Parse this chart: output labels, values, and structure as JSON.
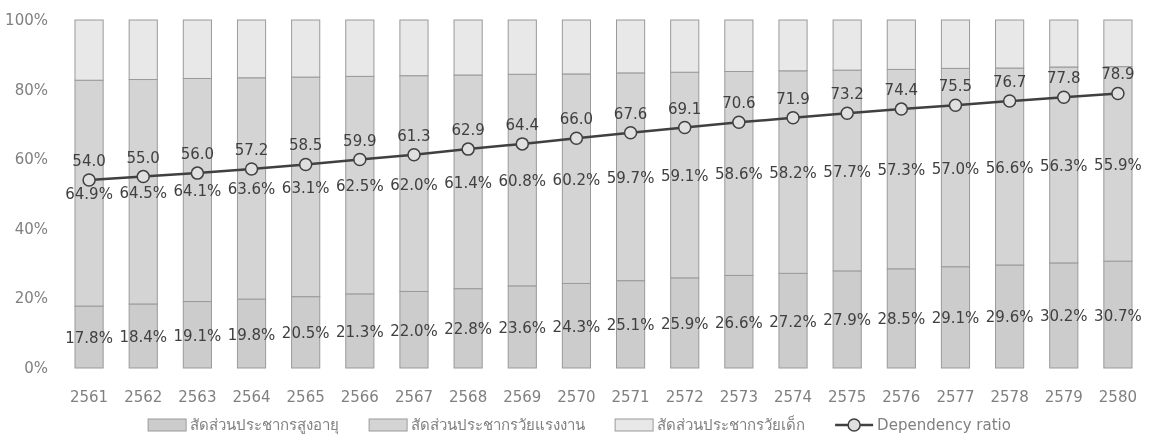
{
  "chart_data": {
    "type": "bar",
    "stacked": true,
    "categories": [
      "2561",
      "2562",
      "2563",
      "2564",
      "2565",
      "2566",
      "2567",
      "2568",
      "2569",
      "2570",
      "2571",
      "2572",
      "2573",
      "2574",
      "2575",
      "2576",
      "2577",
      "2578",
      "2579",
      "2580"
    ],
    "series": [
      {
        "name": "สัดส่วนประชากรสูงอายุ",
        "color": "#cccccc",
        "values": [
          17.8,
          18.4,
          19.1,
          19.8,
          20.5,
          21.3,
          22.0,
          22.8,
          23.6,
          24.3,
          25.1,
          25.9,
          26.6,
          27.2,
          27.9,
          28.5,
          29.1,
          29.6,
          30.2,
          30.7
        ],
        "value_labels": [
          "17.8%",
          "18.4%",
          "19.1%",
          "19.8%",
          "20.5%",
          "21.3%",
          "22.0%",
          "22.8%",
          "23.6%",
          "24.3%",
          "25.1%",
          "25.9%",
          "26.6%",
          "27.2%",
          "27.9%",
          "28.5%",
          "29.1%",
          "29.6%",
          "30.2%",
          "30.7%"
        ]
      },
      {
        "name": "สัดส่วนประชากรวัยแรงงาน",
        "color": "#d4d4d4",
        "values": [
          64.9,
          64.5,
          64.1,
          63.6,
          63.1,
          62.5,
          62.0,
          61.4,
          60.8,
          60.2,
          59.7,
          59.1,
          58.6,
          58.2,
          57.7,
          57.3,
          57.0,
          56.6,
          56.3,
          55.9
        ],
        "value_labels": [
          "64.9%",
          "64.5%",
          "64.1%",
          "63.6%",
          "63.1%",
          "62.5%",
          "62.0%",
          "61.4%",
          "60.8%",
          "60.2%",
          "59.7%",
          "59.1%",
          "58.6%",
          "58.2%",
          "57.7%",
          "57.3%",
          "57.0%",
          "56.6%",
          "56.3%",
          "55.9%"
        ]
      },
      {
        "name": "สัดส่วนประชากรวัยเด็ก",
        "color": "#e8e8e8",
        "values": [
          17.3,
          17.1,
          16.8,
          16.6,
          16.4,
          16.2,
          16.0,
          15.8,
          15.6,
          15.5,
          15.2,
          15.0,
          14.8,
          14.6,
          14.4,
          14.2,
          13.9,
          13.8,
          13.5,
          13.4
        ]
      },
      {
        "name": "Dependency ratio",
        "type": "line",
        "color": "#404040",
        "marker": "circle",
        "values": [
          54.0,
          55.0,
          56.0,
          57.2,
          58.5,
          59.9,
          61.3,
          62.9,
          64.4,
          66.0,
          67.6,
          69.1,
          70.6,
          71.9,
          73.2,
          74.4,
          75.5,
          76.7,
          77.8,
          78.9
        ],
        "value_labels": [
          "54.0",
          "55.0",
          "56.0",
          "57.2",
          "58.5",
          "59.9",
          "61.3",
          "62.9",
          "64.4",
          "66.0",
          "67.6",
          "69.1",
          "70.6",
          "71.9",
          "73.2",
          "74.4",
          "75.5",
          "76.7",
          "77.8",
          "78.9"
        ]
      }
    ],
    "ylim": [
      0,
      100
    ],
    "yticks": [
      {
        "value": 0,
        "label": "0%"
      },
      {
        "value": 20,
        "label": "20%"
      },
      {
        "value": 40,
        "label": "40%"
      },
      {
        "value": 60,
        "label": "60%"
      },
      {
        "value": 80,
        "label": "80%"
      },
      {
        "value": 100,
        "label": "100%"
      }
    ],
    "legend": "bottom"
  }
}
